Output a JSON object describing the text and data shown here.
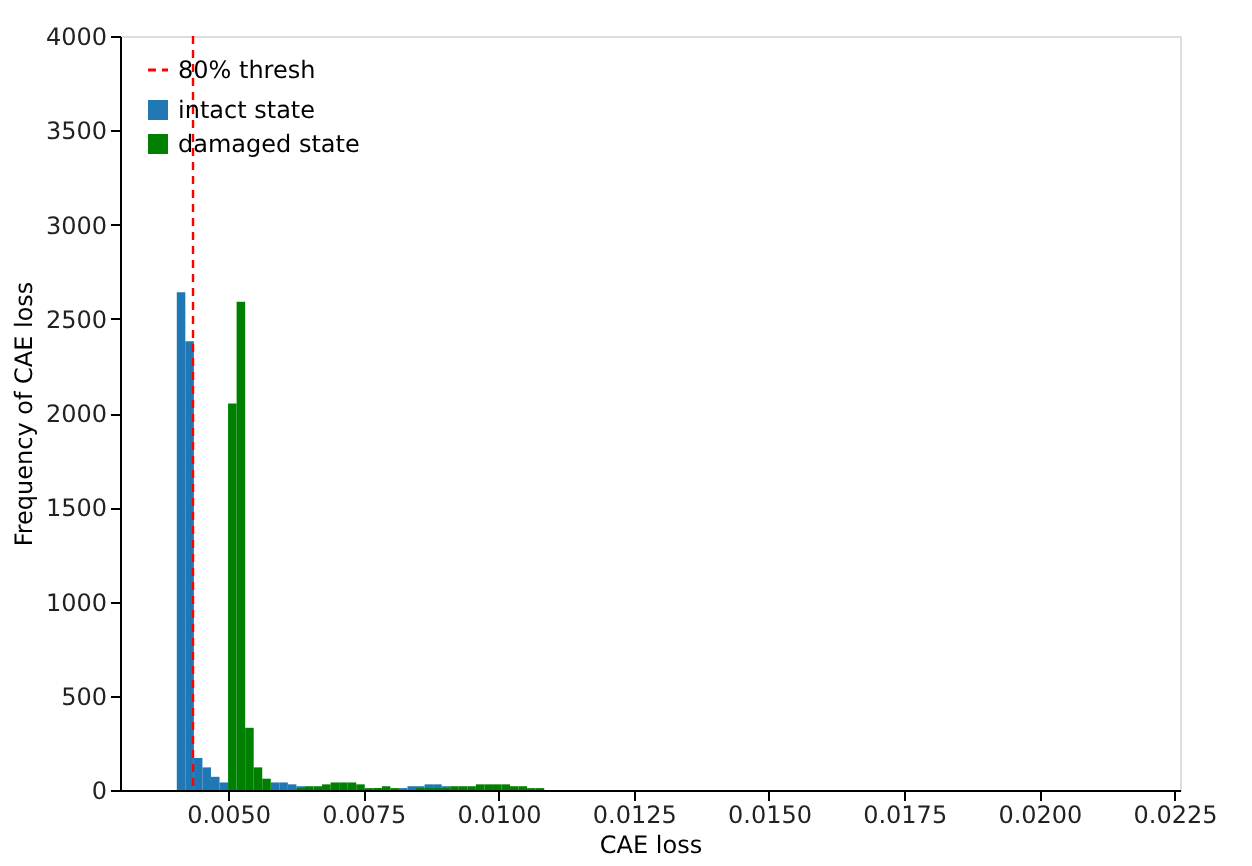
{
  "chart_data": {
    "type": "histogram",
    "xlabel": "CAE loss",
    "ylabel": "Frequency of CAE loss",
    "xlim": [
      0.003,
      0.0226
    ],
    "xticks": [
      {
        "value": 0.005,
        "label": "0.0050"
      },
      0.0075,
      {
        "value": 0.01,
        "label": "0.0100"
      },
      0.0125,
      {
        "value": 0.015,
        "label": "0.0150"
      },
      0.0175,
      {
        "value": 0.02,
        "label": "0.0200"
      },
      0.0225
    ],
    "ylim": [
      0,
      4000
    ],
    "yticks": [
      0,
      500,
      1000,
      1500,
      2000,
      2500,
      3000,
      3500,
      4000
    ],
    "grid": false,
    "legend": "top left",
    "ref_lines": [
      {
        "axis": "x",
        "value": 0.00435,
        "label": "80% thresh",
        "color": "#ff0000",
        "line_style": "dashed"
      }
    ],
    "bins": [
      0.00405,
      0.004208,
      0.004366,
      0.004524,
      0.004682,
      0.00484,
      0.004998,
      0.005156,
      0.005314,
      0.005472,
      0.00563,
      0.005788,
      0.005946,
      0.006104,
      0.006262,
      0.00642,
      0.006578,
      0.006736,
      0.006894,
      0.007052,
      0.00721,
      0.007368,
      0.007526,
      0.007684,
      0.007842,
      0.008,
      0.008158,
      0.008316,
      0.008474,
      0.008632,
      0.00879,
      0.008948,
      0.009106,
      0.009264,
      0.009422,
      0.00958,
      0.009738,
      0.009896,
      0.010054,
      0.010212,
      0.01037,
      0.010528,
      0.010686,
      0.010844
    ],
    "series": [
      {
        "name": "intact state",
        "color": "#1f77b4",
        "values": [
          2640,
          2380,
          170,
          120,
          70,
          40,
          null,
          null,
          null,
          null,
          null,
          40,
          40,
          30,
          20,
          null,
          null,
          null,
          null,
          null,
          null,
          null,
          null,
          null,
          null,
          null,
          10,
          20,
          20,
          30,
          30,
          20,
          null,
          null,
          null,
          null,
          null,
          null,
          null,
          null,
          null,
          null,
          null
        ]
      },
      {
        "name": "damaged state",
        "color": "#008000",
        "values": [
          null,
          null,
          null,
          null,
          null,
          null,
          2050,
          2590,
          330,
          120,
          60,
          null,
          null,
          null,
          10,
          20,
          20,
          30,
          40,
          40,
          40,
          30,
          10,
          10,
          20,
          10,
          null,
          null,
          10,
          10,
          10,
          10,
          20,
          20,
          20,
          30,
          30,
          30,
          30,
          20,
          20,
          10,
          10
        ]
      }
    ]
  }
}
